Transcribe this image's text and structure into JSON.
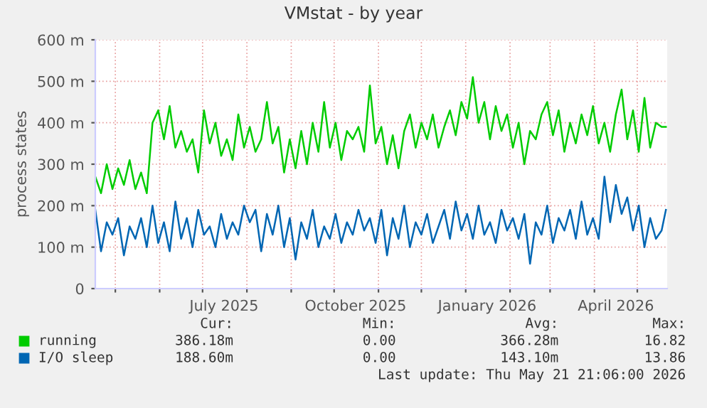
{
  "chart_data": {
    "type": "line",
    "title": "VMstat - by year",
    "ylabel": "process states",
    "x": [
      "2025-04-17",
      "2025-04-21",
      "2025-04-25",
      "2025-04-29",
      "2025-05-03",
      "2025-05-07",
      "2025-05-11",
      "2025-05-15",
      "2025-05-19",
      "2025-05-23",
      "2025-05-27",
      "2025-05-31",
      "2025-06-04",
      "2025-06-08",
      "2025-06-12",
      "2025-06-16",
      "2025-06-20",
      "2025-06-24",
      "2025-06-28",
      "2025-07-02",
      "2025-07-06",
      "2025-07-10",
      "2025-07-14",
      "2025-07-18",
      "2025-07-22",
      "2025-07-26",
      "2025-07-30",
      "2025-08-03",
      "2025-08-07",
      "2025-08-11",
      "2025-08-15",
      "2025-08-19",
      "2025-08-23",
      "2025-08-27",
      "2025-08-31",
      "2025-09-04",
      "2025-09-08",
      "2025-09-12",
      "2025-09-16",
      "2025-09-20",
      "2025-09-24",
      "2025-09-28",
      "2025-10-02",
      "2025-10-06",
      "2025-10-10",
      "2025-10-14",
      "2025-10-18",
      "2025-10-22",
      "2025-10-26",
      "2025-10-30",
      "2025-11-03",
      "2025-11-07",
      "2025-11-11",
      "2025-11-15",
      "2025-11-19",
      "2025-11-23",
      "2025-11-27",
      "2025-12-01",
      "2025-12-05",
      "2025-12-09",
      "2025-12-13",
      "2025-12-17",
      "2025-12-21",
      "2025-12-25",
      "2025-12-29",
      "2026-01-02",
      "2026-01-06",
      "2026-01-10",
      "2026-01-14",
      "2026-01-18",
      "2026-01-22",
      "2026-01-26",
      "2026-01-30",
      "2026-02-03",
      "2026-02-07",
      "2026-02-11",
      "2026-02-15",
      "2026-02-19",
      "2026-02-23",
      "2026-02-27",
      "2026-03-03",
      "2026-03-07",
      "2026-03-11",
      "2026-03-15",
      "2026-03-19",
      "2026-03-23",
      "2026-03-27",
      "2026-03-31",
      "2026-04-04",
      "2026-04-08",
      "2026-04-12",
      "2026-04-16",
      "2026-04-20",
      "2026-04-24",
      "2026-04-28",
      "2026-05-02",
      "2026-05-06",
      "2026-05-10",
      "2026-05-14",
      "2026-05-18",
      "2026-05-21"
    ],
    "series": [
      {
        "name": "running",
        "color": "#00cc00",
        "values": [
          270,
          230,
          300,
          240,
          290,
          250,
          310,
          240,
          280,
          230,
          400,
          430,
          360,
          440,
          340,
          380,
          330,
          360,
          280,
          430,
          350,
          400,
          320,
          360,
          310,
          420,
          340,
          390,
          330,
          360,
          450,
          350,
          390,
          280,
          360,
          290,
          380,
          300,
          400,
          330,
          450,
          340,
          400,
          310,
          380,
          360,
          390,
          330,
          490,
          350,
          390,
          300,
          370,
          290,
          380,
          420,
          340,
          400,
          360,
          420,
          340,
          390,
          430,
          370,
          450,
          410,
          510,
          400,
          450,
          360,
          440,
          380,
          420,
          340,
          400,
          300,
          380,
          360,
          420,
          450,
          370,
          430,
          330,
          400,
          350,
          420,
          370,
          440,
          350,
          400,
          330,
          420,
          480,
          360,
          430,
          330,
          460,
          340,
          400,
          390,
          390
        ]
      },
      {
        "name": "I/O sleep",
        "color": "#0066b3",
        "values": [
          190,
          90,
          160,
          130,
          170,
          80,
          150,
          120,
          170,
          100,
          200,
          110,
          160,
          90,
          210,
          120,
          170,
          100,
          190,
          130,
          150,
          100,
          180,
          120,
          160,
          130,
          200,
          160,
          190,
          90,
          180,
          130,
          200,
          100,
          170,
          70,
          160,
          120,
          190,
          100,
          150,
          120,
          180,
          110,
          160,
          130,
          190,
          140,
          170,
          110,
          190,
          80,
          170,
          120,
          200,
          100,
          160,
          130,
          180,
          110,
          150,
          190,
          120,
          210,
          140,
          180,
          120,
          200,
          130,
          160,
          110,
          190,
          140,
          170,
          120,
          180,
          60,
          160,
          130,
          200,
          110,
          170,
          140,
          190,
          120,
          210,
          130,
          170,
          120,
          270,
          160,
          250,
          180,
          220,
          140,
          200,
          100,
          170,
          120,
          140,
          190
        ]
      }
    ],
    "xlim": [
      "2025-04-17",
      "2026-05-21T21:06"
    ],
    "xticks": [
      {
        "value": "2025-05-01",
        "label": null
      },
      {
        "value": "2025-06-01",
        "label": null
      },
      {
        "value": "2025-07-01",
        "label": null
      },
      {
        "value": "2025-07-16",
        "label": "July 2025"
      },
      {
        "value": "2025-08-01",
        "label": null
      },
      {
        "value": "2025-09-01",
        "label": null
      },
      {
        "value": "2025-10-01",
        "label": null
      },
      {
        "value": "2025-10-16",
        "label": "October 2025"
      },
      {
        "value": "2025-11-01",
        "label": null
      },
      {
        "value": "2025-12-01",
        "label": null
      },
      {
        "value": "2026-01-01",
        "label": null
      },
      {
        "value": "2026-01-16",
        "label": "January 2026"
      },
      {
        "value": "2026-02-01",
        "label": null
      },
      {
        "value": "2026-03-01",
        "label": null
      },
      {
        "value": "2026-04-01",
        "label": null
      },
      {
        "value": "2026-04-16",
        "label": "April 2026"
      },
      {
        "value": "2026-05-01",
        "label": null
      }
    ],
    "ylim": [
      0,
      600
    ],
    "yticks": [
      0,
      {
        "value": 100,
        "label": "100 m"
      },
      {
        "value": 200,
        "label": "200 m"
      },
      {
        "value": 300,
        "label": "300 m"
      },
      {
        "value": 400,
        "label": "400 m"
      },
      {
        "value": 500,
        "label": "500 m"
      },
      {
        "value": 600,
        "label": "600 m"
      }
    ],
    "grid": true,
    "legend": "bottom",
    "line_style": "solid",
    "marker": "none",
    "annotations": [
      "Cur:",
      "Min:",
      "Avg:",
      "Max:",
      "386.18m",
      "0.00",
      "366.28m",
      "16.82",
      "188.60m",
      "0.00",
      "143.10m",
      "13.86",
      "Last update: Thu May 21 21:06:00 2026"
    ]
  }
}
